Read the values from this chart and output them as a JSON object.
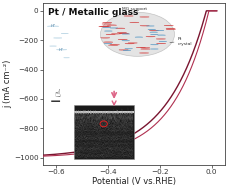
{
  "title": "Pt / Metallic glass",
  "xlabel": "Potential (V vs.RHE)",
  "ylabel": "j (mA cm⁻²)",
  "xlim": [
    -0.65,
    0.05
  ],
  "ylim": [
    -1050,
    50
  ],
  "yticks": [
    0,
    -200,
    -400,
    -600,
    -800,
    -1000
  ],
  "xticks": [
    -0.6,
    -0.4,
    -0.2,
    0.0
  ],
  "bg_color": "#ffffff",
  "curve_color": "#7a1530",
  "curve_color2": "#b03050",
  "title_fontsize": 6.5,
  "label_fontsize": 6.0,
  "tick_fontsize": 5.2,
  "mg_color": "#e05555",
  "pt_color": "#7ab8d8",
  "bubble_color": "#c8dff0",
  "sem_dark": "#1a1a1a",
  "sem_mid": "#444444",
  "sem_light": "#888888"
}
